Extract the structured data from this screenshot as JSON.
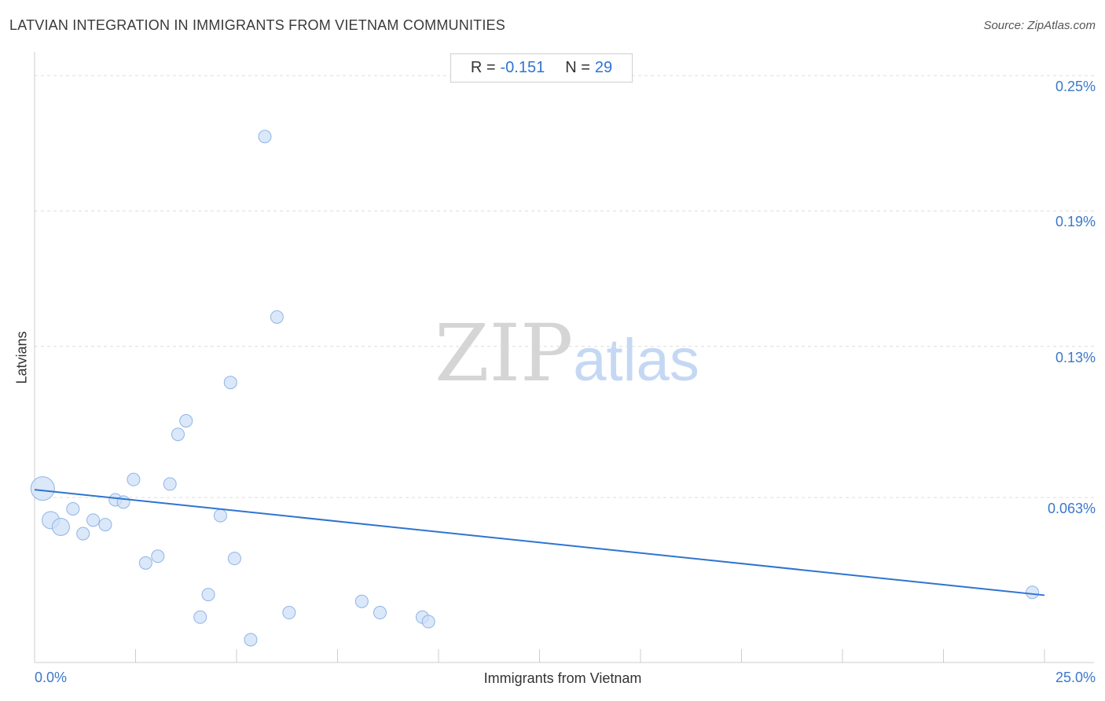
{
  "title": "LATVIAN INTEGRATION IN IMMIGRANTS FROM VIETNAM COMMUNITIES",
  "source": "Source: ZipAtlas.com",
  "stats": {
    "r_label": "R =",
    "r_value": "-0.151",
    "n_label": "N =",
    "n_value": "29"
  },
  "watermark": {
    "zip": "ZIP",
    "atlas": "atlas"
  },
  "colors": {
    "point_fill": "#cfe0f7",
    "point_stroke": "#8fb4e6",
    "trend": "#2f74d0",
    "tick_label": "#3b78c9",
    "grid": "#dddddd"
  },
  "chart_data": {
    "type": "scatter",
    "title": "LATVIAN INTEGRATION IN IMMIGRANTS FROM VIETNAM COMMUNITIES",
    "xlabel": "Immigrants from Vietnam",
    "ylabel": "Latvians",
    "xlim": [
      0,
      25
    ],
    "ylim": [
      0.0,
      0.256
    ],
    "x_tick_labels": [
      "0.0%",
      "25.0%"
    ],
    "y_ticks": [
      {
        "value": 0.063,
        "label": "0.063%"
      },
      {
        "value": 0.13,
        "label": "0.13%"
      },
      {
        "value": 0.19,
        "label": "0.19%"
      },
      {
        "value": 0.25,
        "label": "0.25%"
      }
    ],
    "grid": "horizontal dashed",
    "points": [
      {
        "x": 0.2,
        "y": 0.067,
        "size": "large"
      },
      {
        "x": 0.4,
        "y": 0.053,
        "size": "medium"
      },
      {
        "x": 0.65,
        "y": 0.05,
        "size": "medium"
      },
      {
        "x": 0.95,
        "y": 0.058,
        "size": "small"
      },
      {
        "x": 1.2,
        "y": 0.047,
        "size": "small"
      },
      {
        "x": 1.45,
        "y": 0.053,
        "size": "small"
      },
      {
        "x": 1.75,
        "y": 0.051,
        "size": "small"
      },
      {
        "x": 2.0,
        "y": 0.062,
        "size": "small"
      },
      {
        "x": 2.2,
        "y": 0.061,
        "size": "small"
      },
      {
        "x": 2.45,
        "y": 0.071,
        "size": "small"
      },
      {
        "x": 2.75,
        "y": 0.034,
        "size": "small"
      },
      {
        "x": 3.05,
        "y": 0.037,
        "size": "small"
      },
      {
        "x": 3.35,
        "y": 0.069,
        "size": "small"
      },
      {
        "x": 3.55,
        "y": 0.091,
        "size": "small"
      },
      {
        "x": 3.75,
        "y": 0.097,
        "size": "small"
      },
      {
        "x": 4.1,
        "y": 0.01,
        "size": "small"
      },
      {
        "x": 4.3,
        "y": 0.02,
        "size": "small"
      },
      {
        "x": 4.6,
        "y": 0.055,
        "size": "small"
      },
      {
        "x": 4.85,
        "y": 0.114,
        "size": "small"
      },
      {
        "x": 4.95,
        "y": 0.036,
        "size": "small"
      },
      {
        "x": 5.35,
        "y": 0.0,
        "size": "small"
      },
      {
        "x": 5.7,
        "y": 0.223,
        "size": "small"
      },
      {
        "x": 6.0,
        "y": 0.143,
        "size": "small"
      },
      {
        "x": 6.3,
        "y": 0.012,
        "size": "small"
      },
      {
        "x": 8.1,
        "y": 0.017,
        "size": "small"
      },
      {
        "x": 8.55,
        "y": 0.012,
        "size": "small"
      },
      {
        "x": 9.6,
        "y": 0.01,
        "size": "small"
      },
      {
        "x": 9.75,
        "y": 0.008,
        "size": "small"
      },
      {
        "x": 24.7,
        "y": 0.021,
        "size": "small"
      }
    ],
    "trendline": {
      "x": [
        0,
        25
      ],
      "y": [
        0.0665,
        0.0197
      ]
    }
  }
}
